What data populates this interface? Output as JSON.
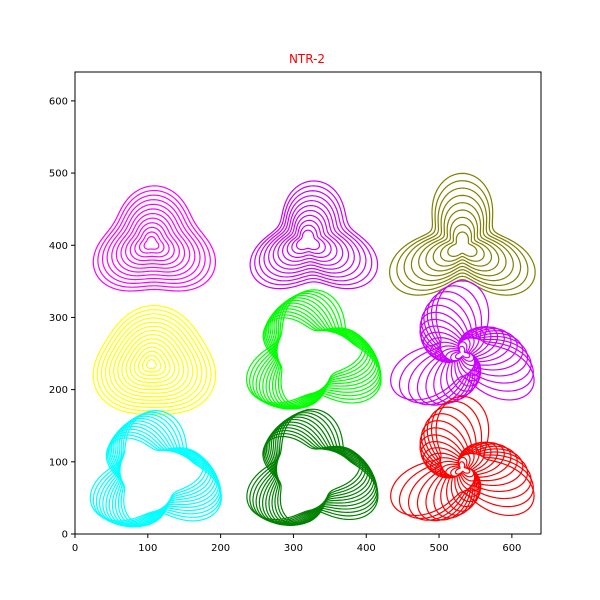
{
  "chart_data": {
    "type": "line",
    "title": "NTR-2",
    "title_color": "#ff0000",
    "xlabel": "",
    "ylabel": "",
    "xlim": [
      0,
      640
    ],
    "ylim": [
      0,
      640
    ],
    "xticks": [
      0,
      100,
      200,
      300,
      400,
      500,
      600
    ],
    "yticks": [
      0,
      100,
      200,
      300,
      400,
      500,
      600
    ],
    "grid": false,
    "legend": "none",
    "curves": [
      {
        "color": "#ff00ff",
        "center": [
          105,
          402
        ],
        "radius": 78,
        "shape_k": 0.16,
        "rings": 12,
        "inner_ratio": 0.12,
        "twist": 0.0,
        "shift": [
          4,
          -3
        ]
      },
      {
        "color": "#cc00ff",
        "center": [
          320,
          405
        ],
        "radius": 76,
        "shape_k": 0.26,
        "rings": 11,
        "inner_ratio": 0.18,
        "twist": 0.0,
        "shift": [
          8,
          -4
        ]
      },
      {
        "color": "#808000",
        "center": [
          532,
          398
        ],
        "radius": 80,
        "shape_k": 0.38,
        "rings": 9,
        "inner_ratio": 0.2,
        "twist": 0.0,
        "shift": [
          0,
          0
        ]
      },
      {
        "color": "#ffff00",
        "center": [
          105,
          235
        ],
        "radius": 82,
        "shape_k": 0.08,
        "rings": 14,
        "inner_ratio": 0.08,
        "twist": 0.0,
        "shift": [
          4,
          0
        ]
      },
      {
        "color": "#00ff00",
        "center": [
          322,
          245
        ],
        "radius": 78,
        "shape_k": 0.3,
        "rings": 12,
        "inner_ratio": 0.75,
        "twist": 0.85,
        "shift": [
          6,
          0
        ]
      },
      {
        "color": "#cc00ff",
        "center": [
          532,
          250
        ],
        "radius": 72,
        "shape_k": 0.52,
        "rings": 16,
        "inner_ratio": 0.1,
        "twist": 2.2,
        "shift": [
          0,
          0
        ]
      },
      {
        "color": "#00ffff",
        "center": [
          105,
          80
        ],
        "radius": 76,
        "shape_k": 0.3,
        "rings": 12,
        "inner_ratio": 0.75,
        "twist": 0.85,
        "shift": [
          6,
          0
        ]
      },
      {
        "color": "#008000",
        "center": [
          320,
          82
        ],
        "radius": 76,
        "shape_k": 0.3,
        "rings": 12,
        "inner_ratio": 0.75,
        "twist": 0.85,
        "shift": [
          6,
          0
        ]
      },
      {
        "color": "#ff0000",
        "center": [
          532,
          90
        ],
        "radius": 72,
        "shape_k": 0.52,
        "rings": 16,
        "inner_ratio": 0.1,
        "twist": 2.2,
        "shift": [
          0,
          0
        ]
      }
    ]
  }
}
